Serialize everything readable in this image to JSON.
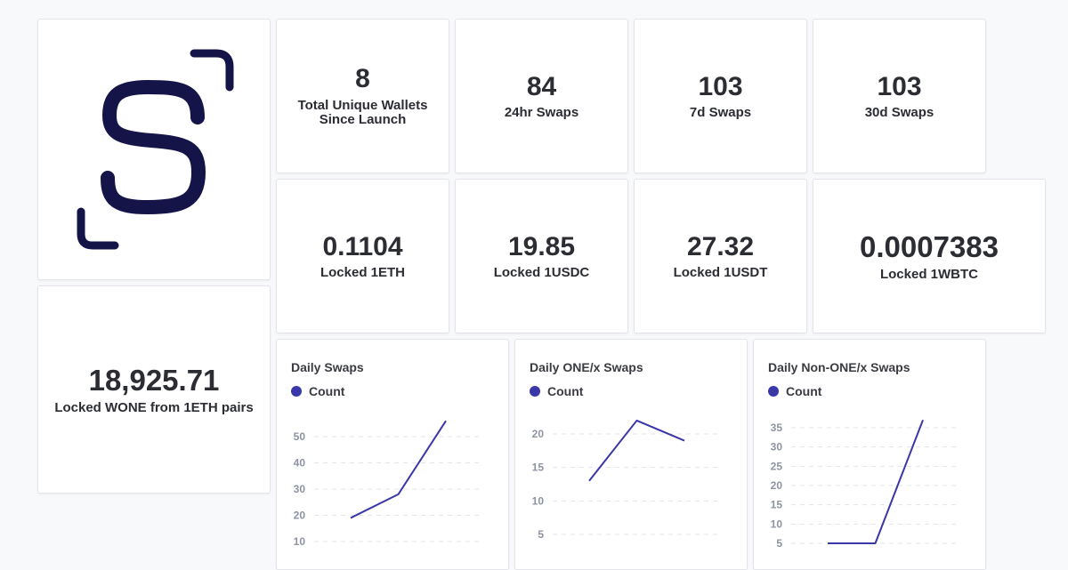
{
  "brand": {
    "logo_color": "#151449"
  },
  "stats": [
    {
      "value": "8",
      "label": "Total Unique Wallets Since Launch"
    },
    {
      "value": "84",
      "label": "24hr Swaps"
    },
    {
      "value": "103",
      "label": "7d Swaps"
    },
    {
      "value": "103",
      "label": "30d Swaps"
    },
    {
      "value": "0.1104",
      "label": "Locked 1ETH"
    },
    {
      "value": "19.85",
      "label": "Locked 1USDC"
    },
    {
      "value": "27.32",
      "label": "Locked 1USDT"
    },
    {
      "value": "0.0007383",
      "label": "Locked 1WBTC"
    },
    {
      "value": "18,925.71",
      "label": "Locked WONE from 1ETH pairs"
    }
  ],
  "colors": {
    "series": "#3a37a8",
    "grid": "#e2e4e9"
  },
  "chart_data": [
    {
      "type": "line",
      "title": "Daily Swaps",
      "series": [
        {
          "name": "Count",
          "values": [
            19,
            28,
            56
          ]
        }
      ],
      "yticks": [
        10,
        20,
        30,
        40,
        50
      ],
      "ylim": [
        0,
        60
      ],
      "grid": true,
      "legend": "top-left"
    },
    {
      "type": "line",
      "title": "Daily ONE/x Swaps",
      "series": [
        {
          "name": "Count",
          "values": [
            13,
            22,
            19
          ]
        }
      ],
      "yticks": [
        5,
        10,
        15,
        20
      ],
      "ylim": [
        0,
        24
      ],
      "grid": true,
      "legend": "top-left"
    },
    {
      "type": "line",
      "title": "Daily Non-ONE/x Swaps",
      "series": [
        {
          "name": "Count",
          "values": [
            5,
            5,
            37
          ]
        }
      ],
      "yticks": [
        5,
        10,
        15,
        20,
        25,
        30,
        35
      ],
      "ylim": [
        0,
        40
      ],
      "grid": true,
      "legend": "top-left"
    }
  ]
}
